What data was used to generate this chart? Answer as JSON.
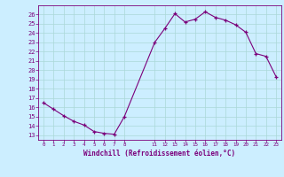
{
  "x_vals": [
    0,
    1,
    2,
    3,
    4,
    5,
    6,
    7,
    8,
    11,
    12,
    13,
    14,
    15,
    16,
    17,
    18,
    19,
    20,
    21,
    22,
    23
  ],
  "y_vals": [
    16.5,
    15.8,
    15.1,
    14.5,
    14.1,
    13.4,
    13.2,
    13.1,
    15.0,
    23.0,
    24.5,
    26.1,
    25.2,
    25.5,
    26.3,
    25.7,
    25.4,
    24.9,
    24.1,
    21.8,
    21.5,
    19.3
  ],
  "yticks": [
    13,
    14,
    15,
    16,
    17,
    18,
    19,
    20,
    21,
    22,
    23,
    24,
    25,
    26
  ],
  "ylim": [
    12.5,
    27.0
  ],
  "xlim": [
    -0.5,
    23.5
  ],
  "x_tick_positions": [
    0,
    1,
    2,
    3,
    4,
    5,
    6,
    7,
    8,
    11,
    12,
    13,
    14,
    15,
    16,
    17,
    18,
    19,
    20,
    21,
    22,
    23
  ],
  "x_tick_labels": [
    "0",
    "1",
    "2",
    "3",
    "4",
    "5",
    "6",
    "7",
    "8",
    "11",
    "12",
    "13",
    "14",
    "15",
    "16",
    "17",
    "18",
    "19",
    "20",
    "21",
    "22",
    "23"
  ],
  "line_color": "#7b007b",
  "bg_color": "#cceeff",
  "grid_color": "#aad8d8",
  "axis_color": "#7b007b",
  "xlabel": "Windchill (Refroidissement éolien,°C)"
}
